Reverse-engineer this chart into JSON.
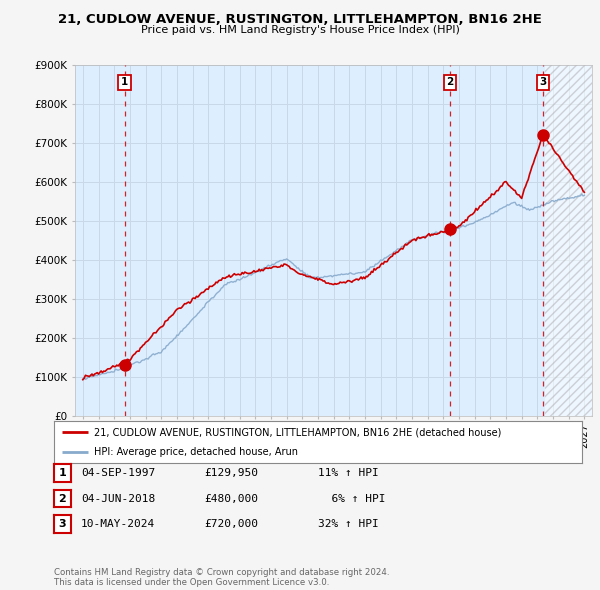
{
  "title_line1": "21, CUDLOW AVENUE, RUSTINGTON, LITTLEHAMPTON, BN16 2HE",
  "title_line2": "Price paid vs. HM Land Registry's House Price Index (HPI)",
  "ylim": [
    0,
    900000
  ],
  "yticks": [
    0,
    100000,
    200000,
    300000,
    400000,
    500000,
    600000,
    700000,
    800000,
    900000
  ],
  "ytick_labels": [
    "£0",
    "£100K",
    "£200K",
    "£300K",
    "£400K",
    "£500K",
    "£600K",
    "£700K",
    "£800K",
    "£900K"
  ],
  "xlim_start": 1994.5,
  "xlim_end": 2027.5,
  "xticks": [
    1995,
    1996,
    1997,
    1998,
    1999,
    2000,
    2001,
    2002,
    2003,
    2004,
    2005,
    2006,
    2007,
    2008,
    2009,
    2010,
    2011,
    2012,
    2013,
    2014,
    2015,
    2016,
    2017,
    2018,
    2019,
    2020,
    2021,
    2022,
    2023,
    2024,
    2025,
    2026,
    2027
  ],
  "sale_dates": [
    1997.67,
    2018.42,
    2024.36
  ],
  "sale_prices": [
    129950,
    480000,
    720000
  ],
  "sale_labels": [
    "1",
    "2",
    "3"
  ],
  "red_line_color": "#cc0000",
  "blue_line_color": "#88aacc",
  "dashed_line_color": "#cc0000",
  "grid_color": "#c8d8e8",
  "background_color": "#f5f5f5",
  "plot_bg_color": "#ddeeff",
  "legend_line1": "21, CUDLOW AVENUE, RUSTINGTON, LITTLEHAMPTON, BN16 2HE (detached house)",
  "legend_line2": "HPI: Average price, detached house, Arun",
  "table_rows": [
    {
      "label": "1",
      "date": "04-SEP-1997",
      "price": "£129,950",
      "hpi": "11% ↑ HPI"
    },
    {
      "label": "2",
      "date": "04-JUN-2018",
      "price": "£480,000",
      "hpi": "  6% ↑ HPI"
    },
    {
      "label": "3",
      "date": "10-MAY-2024",
      "price": "£720,000",
      "hpi": "32% ↑ HPI"
    }
  ],
  "footer": "Contains HM Land Registry data © Crown copyright and database right 2024.\nThis data is licensed under the Open Government Licence v3.0.",
  "shaded_region_start": 2024.5,
  "shaded_region_end": 2027.5
}
